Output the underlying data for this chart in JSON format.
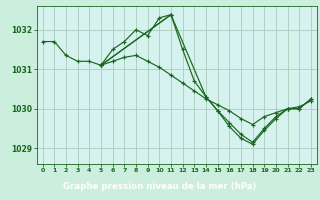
{
  "title": "Graphe pression niveau de la mer (hPa)",
  "background_color": "#cceedd",
  "plot_bg_color": "#d6f2ee",
  "grid_color": "#aaccbb",
  "line_color": "#1a6620",
  "marker_color": "#1a6620",
  "title_bg_color": "#2d7a3a",
  "title_text_color": "#ffffff",
  "xlim": [
    -0.5,
    23.5
  ],
  "ylim": [
    1028.6,
    1032.6
  ],
  "xticks": [
    0,
    1,
    2,
    3,
    4,
    5,
    6,
    7,
    8,
    9,
    10,
    11,
    12,
    13,
    14,
    15,
    16,
    17,
    18,
    19,
    20,
    21,
    22,
    23
  ],
  "yticks": [
    1029,
    1030,
    1031,
    1032
  ],
  "series": [
    {
      "x": [
        0,
        1,
        2,
        3,
        4,
        5,
        6,
        7,
        8,
        9,
        10,
        11
      ],
      "y": [
        1031.7,
        1031.7,
        1031.35,
        1031.2,
        1031.2,
        1031.1,
        1031.5,
        1031.7,
        1032.0,
        1031.85,
        1032.3,
        1032.38
      ]
    },
    {
      "x": [
        5,
        6,
        7,
        8,
        9,
        10,
        11,
        12,
        13,
        14,
        15,
        16,
        17,
        18,
        19,
        20,
        21,
        22,
        23
      ],
      "y": [
        1031.1,
        1031.2,
        1031.3,
        1031.35,
        1031.2,
        1031.05,
        1030.85,
        1030.65,
        1030.45,
        1030.25,
        1030.1,
        1029.95,
        1029.75,
        1029.6,
        1029.8,
        1029.9,
        1030.0,
        1030.05,
        1030.2
      ]
    },
    {
      "x": [
        5,
        11,
        12,
        13,
        14,
        15,
        16,
        17,
        18,
        19,
        20,
        21,
        22,
        23
      ],
      "y": [
        1031.1,
        1032.38,
        1031.5,
        1030.7,
        1030.3,
        1029.95,
        1029.65,
        1029.35,
        1029.15,
        1029.5,
        1029.8,
        1030.0,
        1030.0,
        1030.25
      ]
    },
    {
      "x": [
        5,
        11,
        14,
        15,
        16,
        17,
        18,
        19,
        20,
        21,
        22,
        23
      ],
      "y": [
        1031.1,
        1032.38,
        1030.3,
        1029.95,
        1029.55,
        1029.25,
        1029.1,
        1029.45,
        1029.75,
        1030.0,
        1030.0,
        1030.25
      ]
    }
  ]
}
